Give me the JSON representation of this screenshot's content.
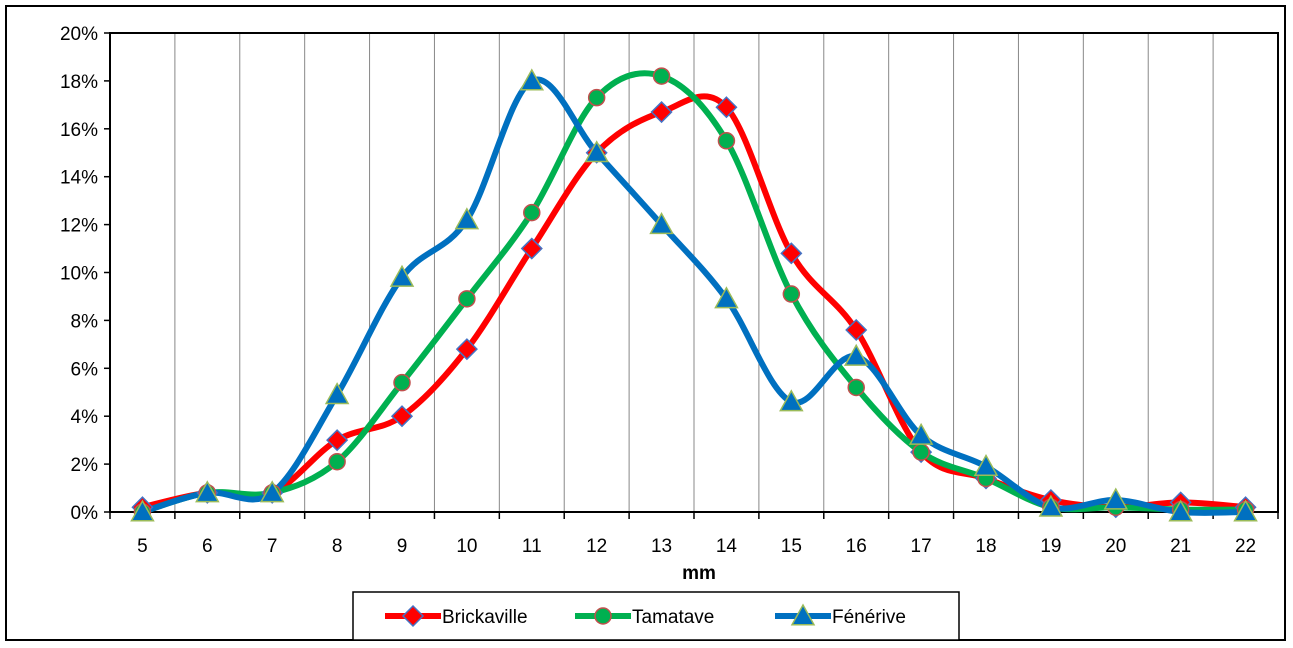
{
  "chart_data": {
    "type": "line",
    "title": "",
    "xlabel": "mm",
    "ylabel": "",
    "x": [
      5,
      6,
      7,
      8,
      9,
      10,
      11,
      12,
      13,
      14,
      15,
      16,
      17,
      18,
      19,
      20,
      21,
      22
    ],
    "ylim": [
      0,
      0.2
    ],
    "ytick_labels": [
      "0%",
      "2%",
      "4%",
      "6%",
      "8%",
      "10%",
      "12%",
      "14%",
      "16%",
      "18%",
      "20%"
    ],
    "yticks": [
      0,
      0.02,
      0.04,
      0.06,
      0.08,
      0.1,
      0.12,
      0.14,
      0.16,
      0.18,
      0.2
    ],
    "grid": "vertical",
    "legend_position": "bottom",
    "series": [
      {
        "name": "Brickaville",
        "color": "#ff0000",
        "marker": "diamond",
        "marker_color": "#ff0000",
        "marker_edge": "#4472c4",
        "values": [
          0.002,
          0.008,
          0.008,
          0.03,
          0.04,
          0.068,
          0.11,
          0.15,
          0.167,
          0.169,
          0.108,
          0.076,
          0.025,
          0.014,
          0.005,
          0.002,
          0.004,
          0.002
        ]
      },
      {
        "name": "Tamatave",
        "color": "#00b050",
        "marker": "circle",
        "marker_color": "#00b050",
        "marker_edge": "#c0504d",
        "values": [
          0.0,
          0.008,
          0.008,
          0.021,
          0.054,
          0.089,
          0.125,
          0.173,
          0.182,
          0.155,
          0.091,
          0.052,
          0.025,
          0.014,
          0.002,
          0.002,
          0.001,
          0.001
        ]
      },
      {
        "name": "Fénérive",
        "color": "#0070c0",
        "marker": "triangle",
        "marker_color": "#0070c0",
        "marker_edge": "#9bbb59",
        "values": [
          0.0,
          0.008,
          0.008,
          0.049,
          0.098,
          0.122,
          0.18,
          0.15,
          0.12,
          0.089,
          0.046,
          0.065,
          0.032,
          0.019,
          0.002,
          0.005,
          0.0,
          0.0
        ]
      }
    ]
  }
}
